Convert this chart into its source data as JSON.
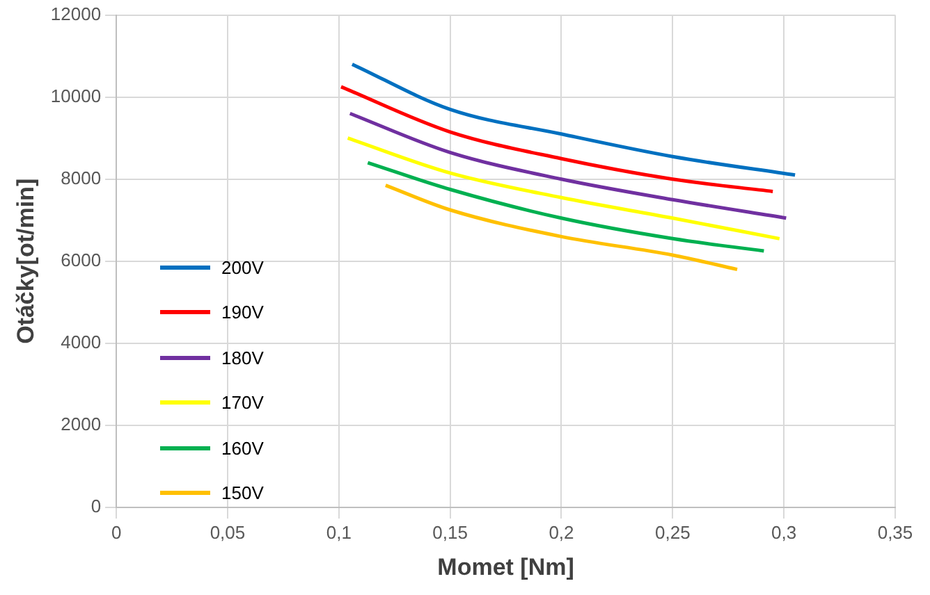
{
  "chart_data": {
    "type": "line",
    "xlabel": "Momet [Nm]",
    "ylabel": "Otáčky[ot/min]",
    "xlim": [
      0,
      0.35
    ],
    "xticks": [
      0,
      {
        "value": 0.05,
        "label": "0,05"
      },
      {
        "value": 0.1,
        "label": "0,1"
      },
      {
        "value": 0.15,
        "label": "0,15"
      },
      {
        "value": 0.2,
        "label": "0,2"
      },
      {
        "value": 0.25,
        "label": "0,25"
      },
      {
        "value": 0.3,
        "label": "0,3"
      },
      {
        "value": 0.35,
        "label": "0,35"
      }
    ],
    "ylim": [
      0,
      12000
    ],
    "yticks": [
      0,
      2000,
      4000,
      6000,
      8000,
      10000,
      12000
    ],
    "grid": true,
    "legend": "left",
    "marker": "none",
    "line_style": "solid",
    "series": [
      {
        "name": "200V",
        "color": "#0070c0",
        "x": [
          0.106,
          0.15,
          0.2,
          0.25,
          0.305
        ],
        "values": [
          10800,
          9700,
          9100,
          8550,
          8100
        ]
      },
      {
        "name": "190V",
        "color": "#ff0000",
        "x": [
          0.101,
          0.15,
          0.2,
          0.25,
          0.295
        ],
        "values": [
          10250,
          9150,
          8500,
          8000,
          7700
        ]
      },
      {
        "name": "180V",
        "color": "#7030a0",
        "x": [
          0.105,
          0.15,
          0.2,
          0.25,
          0.301
        ],
        "values": [
          9600,
          8650,
          8000,
          7500,
          7050
        ]
      },
      {
        "name": "170V",
        "color": "#ffff00",
        "x": [
          0.104,
          0.15,
          0.2,
          0.25,
          0.298
        ],
        "values": [
          9000,
          8150,
          7550,
          7050,
          6550
        ]
      },
      {
        "name": "160V",
        "color": "#00b050",
        "x": [
          0.113,
          0.15,
          0.2,
          0.25,
          0.291
        ],
        "values": [
          8400,
          7750,
          7050,
          6550,
          6250
        ]
      },
      {
        "name": "150V",
        "color": "#ffc000",
        "x": [
          0.121,
          0.15,
          0.2,
          0.25,
          0.279
        ],
        "values": [
          7850,
          7250,
          6600,
          6150,
          5800
        ]
      }
    ]
  }
}
